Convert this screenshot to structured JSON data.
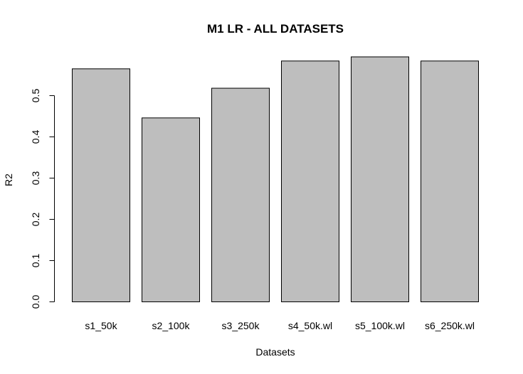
{
  "chart_data": {
    "type": "bar",
    "title": "M1 LR - ALL DATASETS",
    "xlabel": "Datasets",
    "ylabel": "R2",
    "categories": [
      "s1_50k",
      "s2_100k",
      "s3_250k",
      "s4_50k.wl",
      "s5_100k.wl",
      "s6_250k.wl"
    ],
    "values": [
      0.565,
      0.446,
      0.518,
      0.584,
      0.594,
      0.584
    ],
    "yticks": [
      "0.0",
      "0.1",
      "0.2",
      "0.3",
      "0.4",
      "0.5"
    ],
    "ylim": [
      0,
      0.6
    ],
    "bar_color": "#bebebe",
    "grid": false,
    "legend": "none"
  }
}
